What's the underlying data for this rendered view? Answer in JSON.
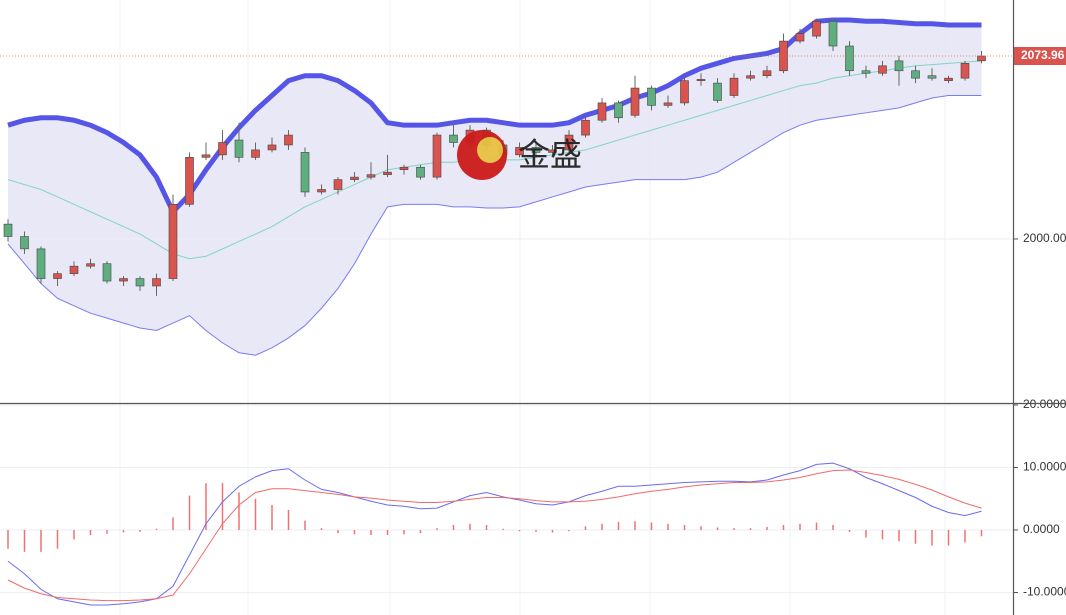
{
  "watermark": "金盛",
  "chart_data": [
    {
      "type": "candlestick",
      "categories": [
        null,
        null,
        null,
        null,
        null,
        null,
        null,
        null,
        null,
        null,
        null,
        null,
        null,
        null,
        null,
        null,
        null,
        null,
        null,
        null,
        null,
        null,
        null,
        null,
        null,
        null,
        null,
        null,
        null,
        null,
        null,
        null,
        null,
        null,
        null,
        null,
        null,
        null,
        null,
        null,
        null,
        null,
        null,
        null,
        null,
        null,
        null,
        null,
        null,
        null,
        null,
        null,
        null,
        null,
        null,
        null,
        null,
        null,
        null,
        null
      ],
      "open": [
        2006,
        2001,
        1996,
        1984,
        1986,
        1989,
        1990,
        1983,
        1984,
        1981,
        1984,
        2014,
        2033,
        2034,
        2040,
        2033,
        2036,
        2038,
        2035,
        2019,
        2020,
        2024,
        2025,
        2026,
        2028,
        2029,
        2025,
        2042,
        2039,
        2044,
        2038,
        2034,
        2037,
        2035,
        2036,
        2042,
        2048,
        2055,
        2050,
        2061,
        2054,
        2055,
        2064,
        2063,
        2058,
        2065,
        2066,
        2068,
        2080,
        2082,
        2088,
        2078,
        2068,
        2067,
        2072,
        2068,
        2066,
        2064,
        2065,
        2072
      ],
      "high": [
        2008,
        2003,
        1997,
        1987,
        1991,
        1992,
        1991,
        1985,
        1985,
        1986,
        2018,
        2035,
        2039,
        2044,
        2047,
        2039,
        2041,
        2044,
        2037,
        2022,
        2025,
        2027,
        2031,
        2034,
        2030,
        2030,
        2043,
        2047,
        2046,
        2045,
        2040,
        2039,
        2039,
        2038,
        2044,
        2050,
        2057,
        2056,
        2066,
        2062,
        2058,
        2066,
        2067,
        2065,
        2067,
        2068,
        2070,
        2083,
        2085,
        2089,
        2089,
        2080,
        2070,
        2072,
        2074,
        2070,
        2069,
        2066,
        2072,
        2076
      ],
      "low": [
        1999,
        1994,
        1982,
        1981,
        1985,
        1988,
        1982,
        1981,
        1979,
        1977,
        1983,
        2013,
        2032,
        2032,
        2031,
        2032,
        2035,
        2036,
        2017,
        2018,
        2018,
        2023,
        2024,
        2025,
        2026,
        2024,
        2024,
        2037,
        2037,
        2036,
        2033,
        2033,
        2034,
        2034,
        2035,
        2041,
        2047,
        2047,
        2049,
        2052,
        2053,
        2054,
        2062,
        2055,
        2057,
        2064,
        2065,
        2067,
        2079,
        2081,
        2076,
        2066,
        2065,
        2066,
        2062,
        2063,
        2064,
        2063,
        2064,
        2071
      ],
      "close": [
        2001,
        1996,
        1984,
        1986,
        1989,
        1990,
        1983,
        1984,
        1981,
        1984,
        2014,
        2033,
        2034,
        2039,
        2033,
        2036,
        2038,
        2042,
        2019,
        2020,
        2024,
        2025,
        2026,
        2027,
        2029,
        2025,
        2042,
        2039,
        2044,
        2038,
        2034,
        2037,
        2035,
        2036,
        2042,
        2048,
        2055,
        2049,
        2061,
        2054,
        2055,
        2064,
        2064.5,
        2056,
        2065,
        2066,
        2068,
        2080,
        2083,
        2088,
        2078,
        2068,
        2067,
        2070,
        2068,
        2065,
        2065,
        2065,
        2071,
        2073.96
      ],
      "up_color": "#d9534f",
      "down_color": "#5fae80",
      "series": [
        {
          "color": "#5555e8",
          "values": [
            2046,
            2048,
            2049,
            2049,
            2048,
            2046,
            2043,
            2039,
            2034,
            2025,
            2011,
            2018,
            2028,
            2037,
            2045,
            2052,
            2058,
            2064,
            2066,
            2066,
            2064,
            2060,
            2055,
            2047,
            2046,
            2046,
            2046,
            2047,
            2048,
            2048,
            2047,
            2046,
            2046,
            2046,
            2047,
            2050,
            2052,
            2054,
            2057,
            2059,
            2062,
            2066,
            2069,
            2071,
            2073,
            2074,
            2075,
            2077,
            2083,
            2088,
            2088.5,
            2088.5,
            2088,
            2088,
            2087.5,
            2087,
            2087,
            2086.5,
            2086.5,
            2086.5
          ]
        },
        {
          "color": "#7fd6c4",
          "values": [
            2024,
            2022,
            2020,
            2017,
            2014,
            2011,
            2008,
            2005,
            2002,
            1998,
            1994,
            1992,
            1993,
            1996,
            1999,
            2002,
            2005,
            2009,
            2013,
            2016,
            2019,
            2022,
            2025,
            2028,
            2029,
            2030,
            2031,
            2031,
            2032,
            2032,
            2032,
            2032,
            2033,
            2034,
            2035,
            2036,
            2038,
            2040,
            2042,
            2044,
            2046,
            2048,
            2050,
            2052,
            2054,
            2056,
            2058,
            2060,
            2062,
            2063,
            2065,
            2066,
            2067,
            2068,
            2069,
            2070,
            2070.5,
            2071,
            2071.5,
            2072
          ]
        },
        {
          "color": "#7b7bf0",
          "values": [
            1998,
            1990,
            1982,
            1976,
            1973,
            1970,
            1968,
            1966,
            1964,
            1963,
            1966,
            1969,
            1963,
            1958,
            1954,
            1953,
            1956,
            1960,
            1965,
            1972,
            1980,
            1990,
            2002,
            2013,
            2014,
            2014,
            2014,
            2013,
            2013,
            2012.5,
            2012.5,
            2013,
            2015,
            2017,
            2019,
            2021,
            2022,
            2023,
            2024,
            2024,
            2024,
            2024,
            2025,
            2027,
            2031,
            2035,
            2039,
            2043,
            2046,
            2048,
            2049,
            2050,
            2051,
            2052,
            2053,
            2055,
            2057,
            2058,
            2058,
            2058
          ]
        }
      ],
      "band_fill": "#e4e4f4",
      "ylim": [
        1933.7,
        2096.6
      ],
      "yticks": [
        {
          "value": 2000,
          "label": "2000.00"
        }
      ],
      "grid": true,
      "last_price": {
        "value": 2073.96,
        "label": "2073.96"
      }
    },
    {
      "type": "macd",
      "series": [
        {
          "color": "#6b6bf0",
          "values": [
            -5,
            -7,
            -9.5,
            -11,
            -11.5,
            -12,
            -12,
            -11.8,
            -11.5,
            -11,
            -9,
            -4,
            1,
            4.5,
            7,
            8.5,
            9.5,
            9.8,
            8,
            6.5,
            6,
            5.3,
            4.6,
            4,
            3.8,
            3.4,
            3.5,
            4.5,
            5.5,
            6,
            5.3,
            4.8,
            4.2,
            4,
            4.5,
            5.5,
            6.2,
            7,
            7,
            7.2,
            7.4,
            7.6,
            7.7,
            7.8,
            7.8,
            7.7,
            8,
            8.8,
            9.5,
            10.5,
            10.7,
            9.8,
            8.4,
            7.4,
            6.3,
            5.2,
            3.8,
            2.8,
            2.3,
            3
          ]
        },
        {
          "color": "#f06b6b",
          "values": [
            -8,
            -9.3,
            -10.2,
            -10.8,
            -11,
            -11.2,
            -11.3,
            -11.3,
            -11.2,
            -11,
            -10.4,
            -7,
            -3,
            1,
            4,
            6,
            6.6,
            6.6,
            6.3,
            6,
            5.7,
            5.3,
            5.1,
            4.8,
            4.6,
            4.4,
            4.4,
            4.6,
            4.9,
            5.2,
            5.2,
            5,
            4.7,
            4.5,
            4.5,
            4.6,
            4.9,
            5.3,
            5.8,
            6.2,
            6.5,
            6.9,
            7.2,
            7.4,
            7.6,
            7.6,
            7.7,
            8,
            8.4,
            9,
            9.5,
            9.6,
            9.2,
            8.7,
            8.1,
            7.3,
            6.4,
            5.3,
            4.3,
            3.5
          ]
        }
      ],
      "histogram": {
        "color": "#f07070",
        "values": [
          -3,
          -3.5,
          -3.5,
          -3,
          -1.5,
          -0.8,
          -0.6,
          -0.4,
          -0.3,
          0.2,
          2,
          5.5,
          7.5,
          7.5,
          6,
          5,
          4,
          3.2,
          1.5,
          0.3,
          -0.5,
          -0.7,
          -0.8,
          -0.8,
          -0.7,
          -0.5,
          0.3,
          0.8,
          1,
          0.8,
          0.2,
          -0.2,
          -0.3,
          -0.4,
          -0.2,
          0.6,
          1,
          1.3,
          1.4,
          1.2,
          1,
          0.8,
          0.6,
          0.4,
          0.3,
          0.3,
          0.5,
          0.8,
          1,
          1.2,
          0.8,
          -0.3,
          -1.2,
          -1.5,
          -1.8,
          -2.2,
          -2.5,
          -2.5,
          -2,
          -1
        ]
      },
      "ylim": [
        -13.6,
        20
      ],
      "yticks": [
        {
          "value": 20,
          "label": "20.0000"
        },
        {
          "value": 10,
          "label": "10.0000"
        },
        {
          "value": 0,
          "label": "0.0000"
        },
        {
          "value": -10,
          "label": "-10.0000"
        }
      ],
      "grid": true
    }
  ]
}
